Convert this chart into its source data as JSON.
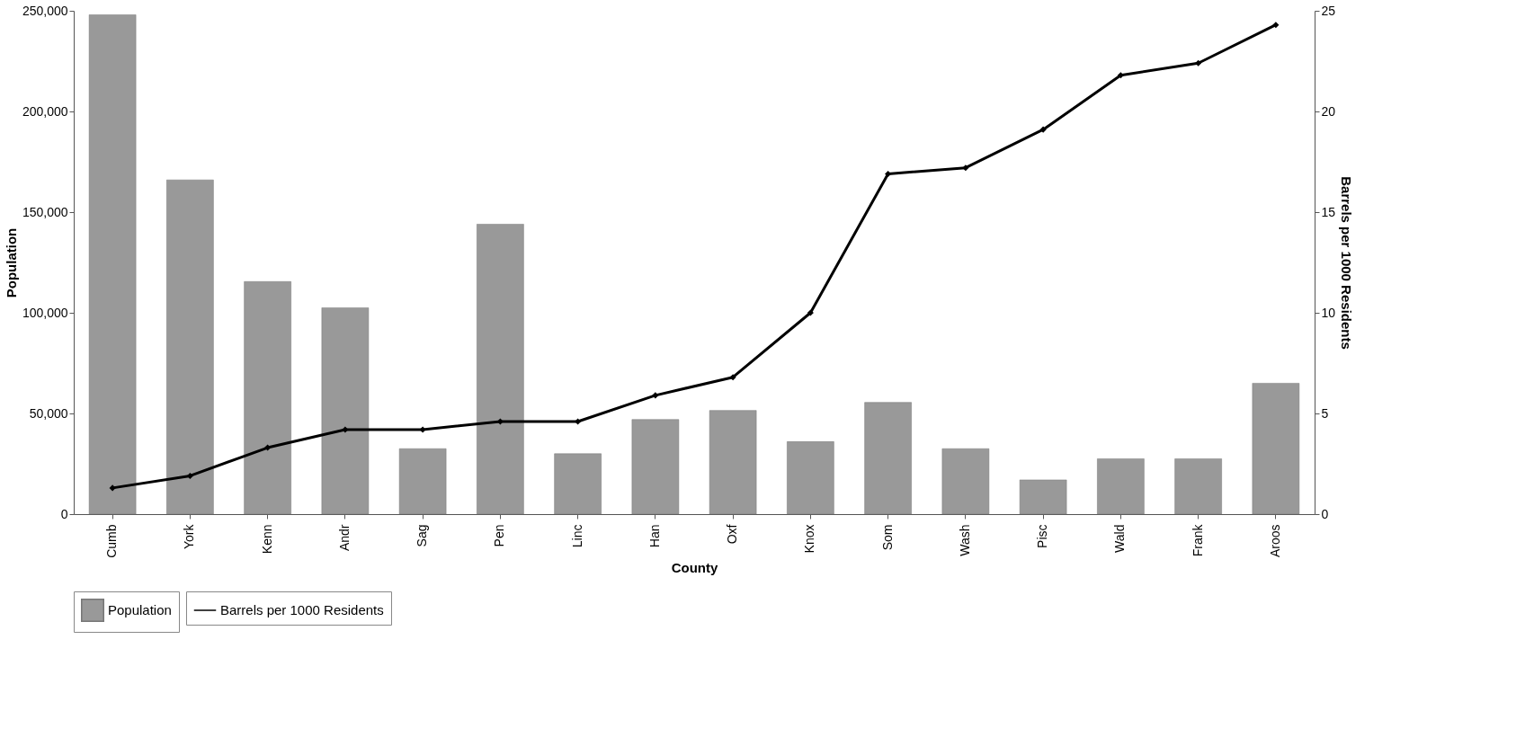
{
  "chart_data": {
    "type": "bar",
    "xlabel": "County",
    "ylabel": "Population",
    "y2label": "Barrels per 1000 Residents",
    "categories": [
      "Cumb",
      "York",
      "Kenn",
      "Andr",
      "Sag",
      "Pen",
      "Linc",
      "Han",
      "Oxf",
      "Knox",
      "Som",
      "Wash",
      "Pisc",
      "Wald",
      "Frank",
      "Aroos"
    ],
    "series": [
      {
        "name": "Population",
        "color": "#999999",
        "values": [
          248000,
          166000,
          115500,
          102500,
          32500,
          144000,
          30000,
          47000,
          51500,
          36000,
          55500,
          32500,
          17000,
          27500,
          27500,
          65000
        ]
      },
      {
        "name": "Barrels per 1000 Residents",
        "type": "line",
        "axis": "y2",
        "color": "#000000",
        "marker": "diamond",
        "values": [
          1.3,
          1.9,
          3.3,
          4.2,
          4.2,
          4.6,
          4.6,
          5.9,
          6.8,
          10.0,
          16.9,
          17.2,
          19.1,
          21.8,
          22.4,
          24.3
        ]
      }
    ],
    "ylim": [
      0,
      250000
    ],
    "yticks": [
      0,
      {
        "value": 50000,
        "label": "50,000"
      },
      {
        "value": 100000,
        "label": "100,000"
      },
      {
        "value": 150000,
        "label": "150,000"
      },
      {
        "value": 200000,
        "label": "200,000"
      },
      {
        "value": 250000,
        "label": "250,000"
      }
    ],
    "y2lim": [
      0,
      25
    ],
    "y2ticks": [
      0,
      5,
      10,
      15,
      20,
      25
    ],
    "legend": "bottom"
  }
}
